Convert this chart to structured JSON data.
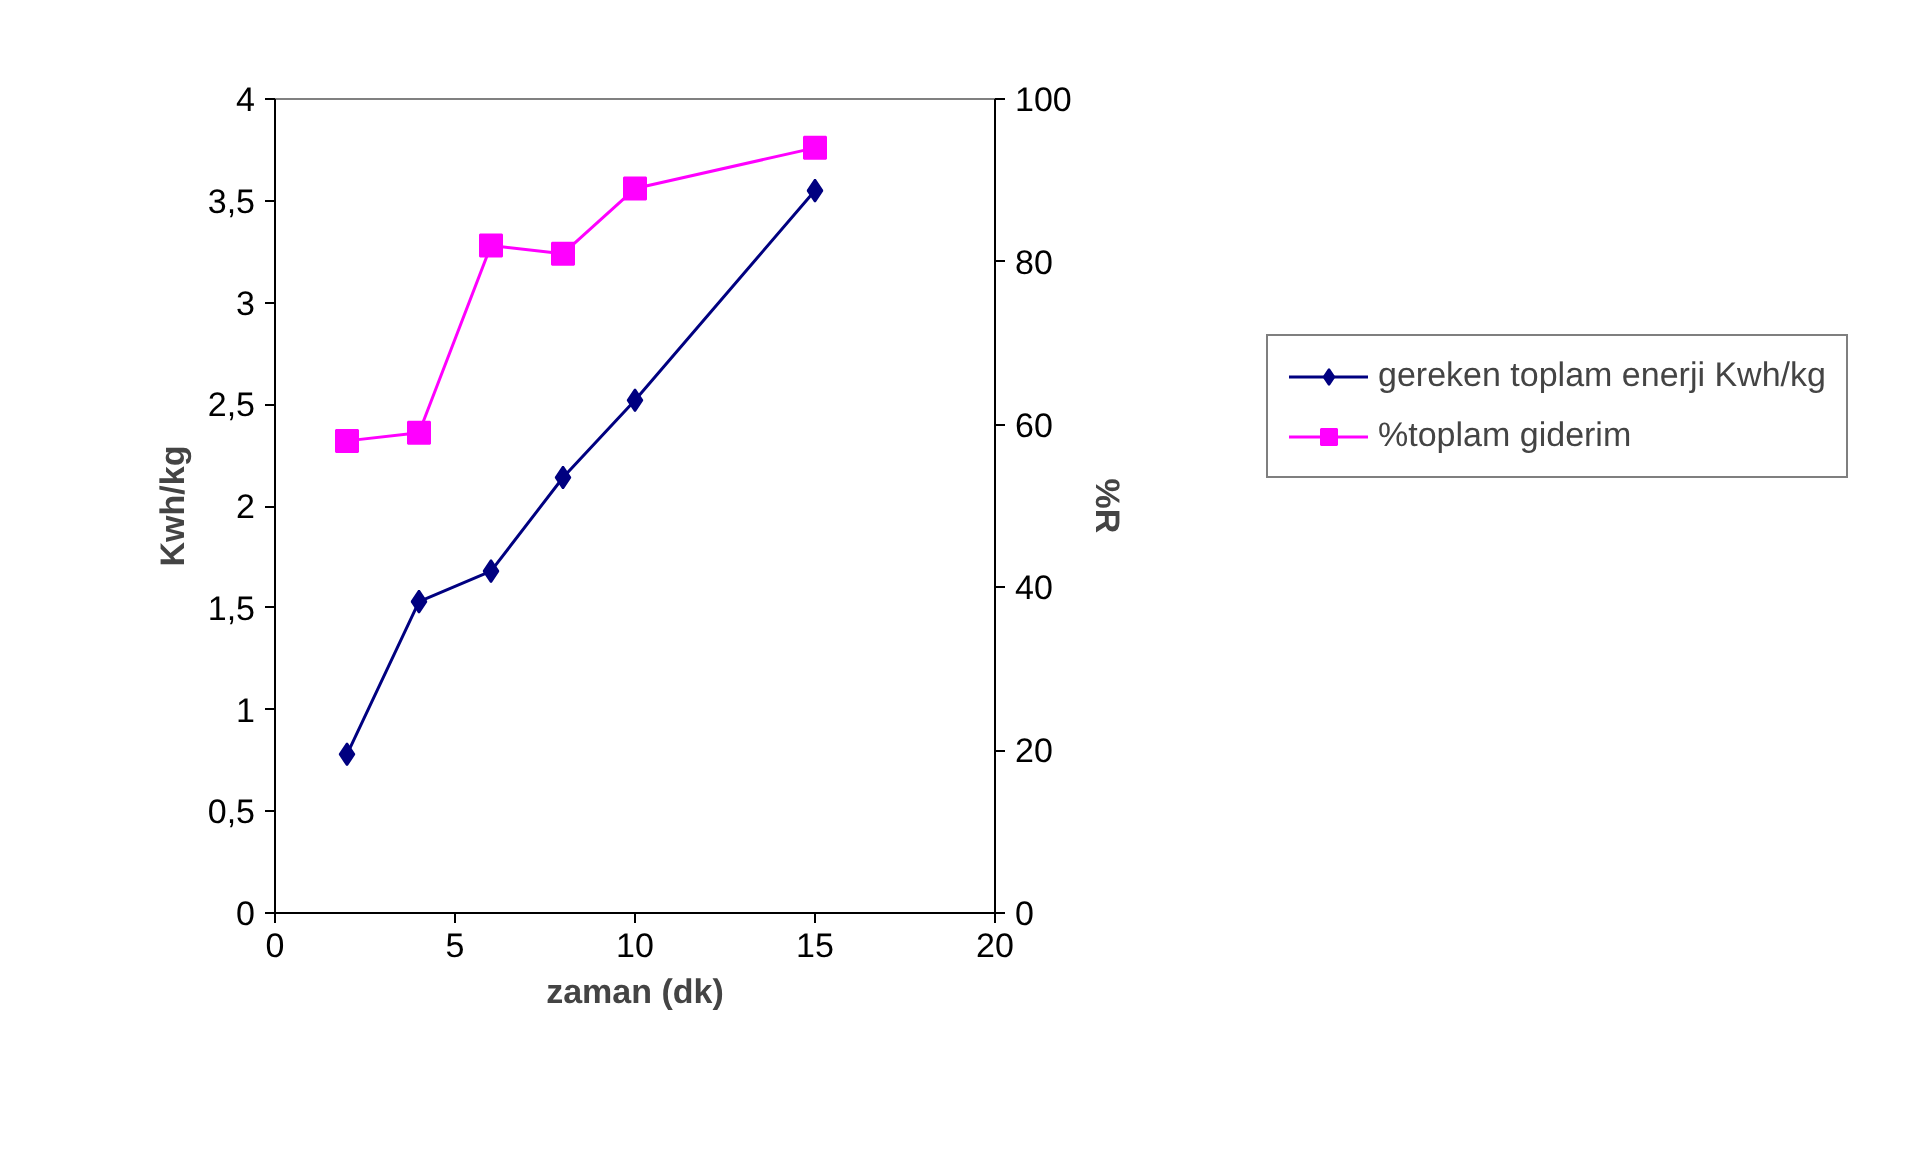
{
  "chart_data": {
    "type": "line",
    "xlabel": "zaman (dk)",
    "ylabel": "Kwh/kg",
    "y2label": "%R",
    "x": [
      2,
      4,
      6,
      8,
      10,
      15
    ],
    "series": [
      {
        "name": "gereken toplam enerji Kwh/kg",
        "color": "#000080",
        "marker": "diamond",
        "values": [
          0.78,
          1.53,
          1.68,
          2.14,
          2.52,
          3.55
        ]
      },
      {
        "name": "%toplam giderim",
        "color": "#ff00ff",
        "marker": "square",
        "axis": "y2",
        "values": [
          58,
          59,
          82,
          81,
          89,
          94
        ]
      }
    ],
    "xlim": [
      0,
      20
    ],
    "xticks": [
      0,
      5,
      10,
      15,
      20
    ],
    "ylim": [
      0,
      4
    ],
    "yticks": [
      0,
      {
        "value": 0.5,
        "label": "0,5"
      },
      1,
      {
        "value": 1.5,
        "label": "1,5"
      },
      2,
      {
        "value": 2.5,
        "label": "2,5"
      },
      3,
      {
        "value": 3.5,
        "label": "3,5"
      },
      4
    ],
    "y2lim": [
      0,
      100
    ],
    "y2ticks": [
      0,
      20,
      40,
      60,
      80,
      100
    ],
    "grid": false,
    "legend": "right",
    "line_style": "solid"
  }
}
